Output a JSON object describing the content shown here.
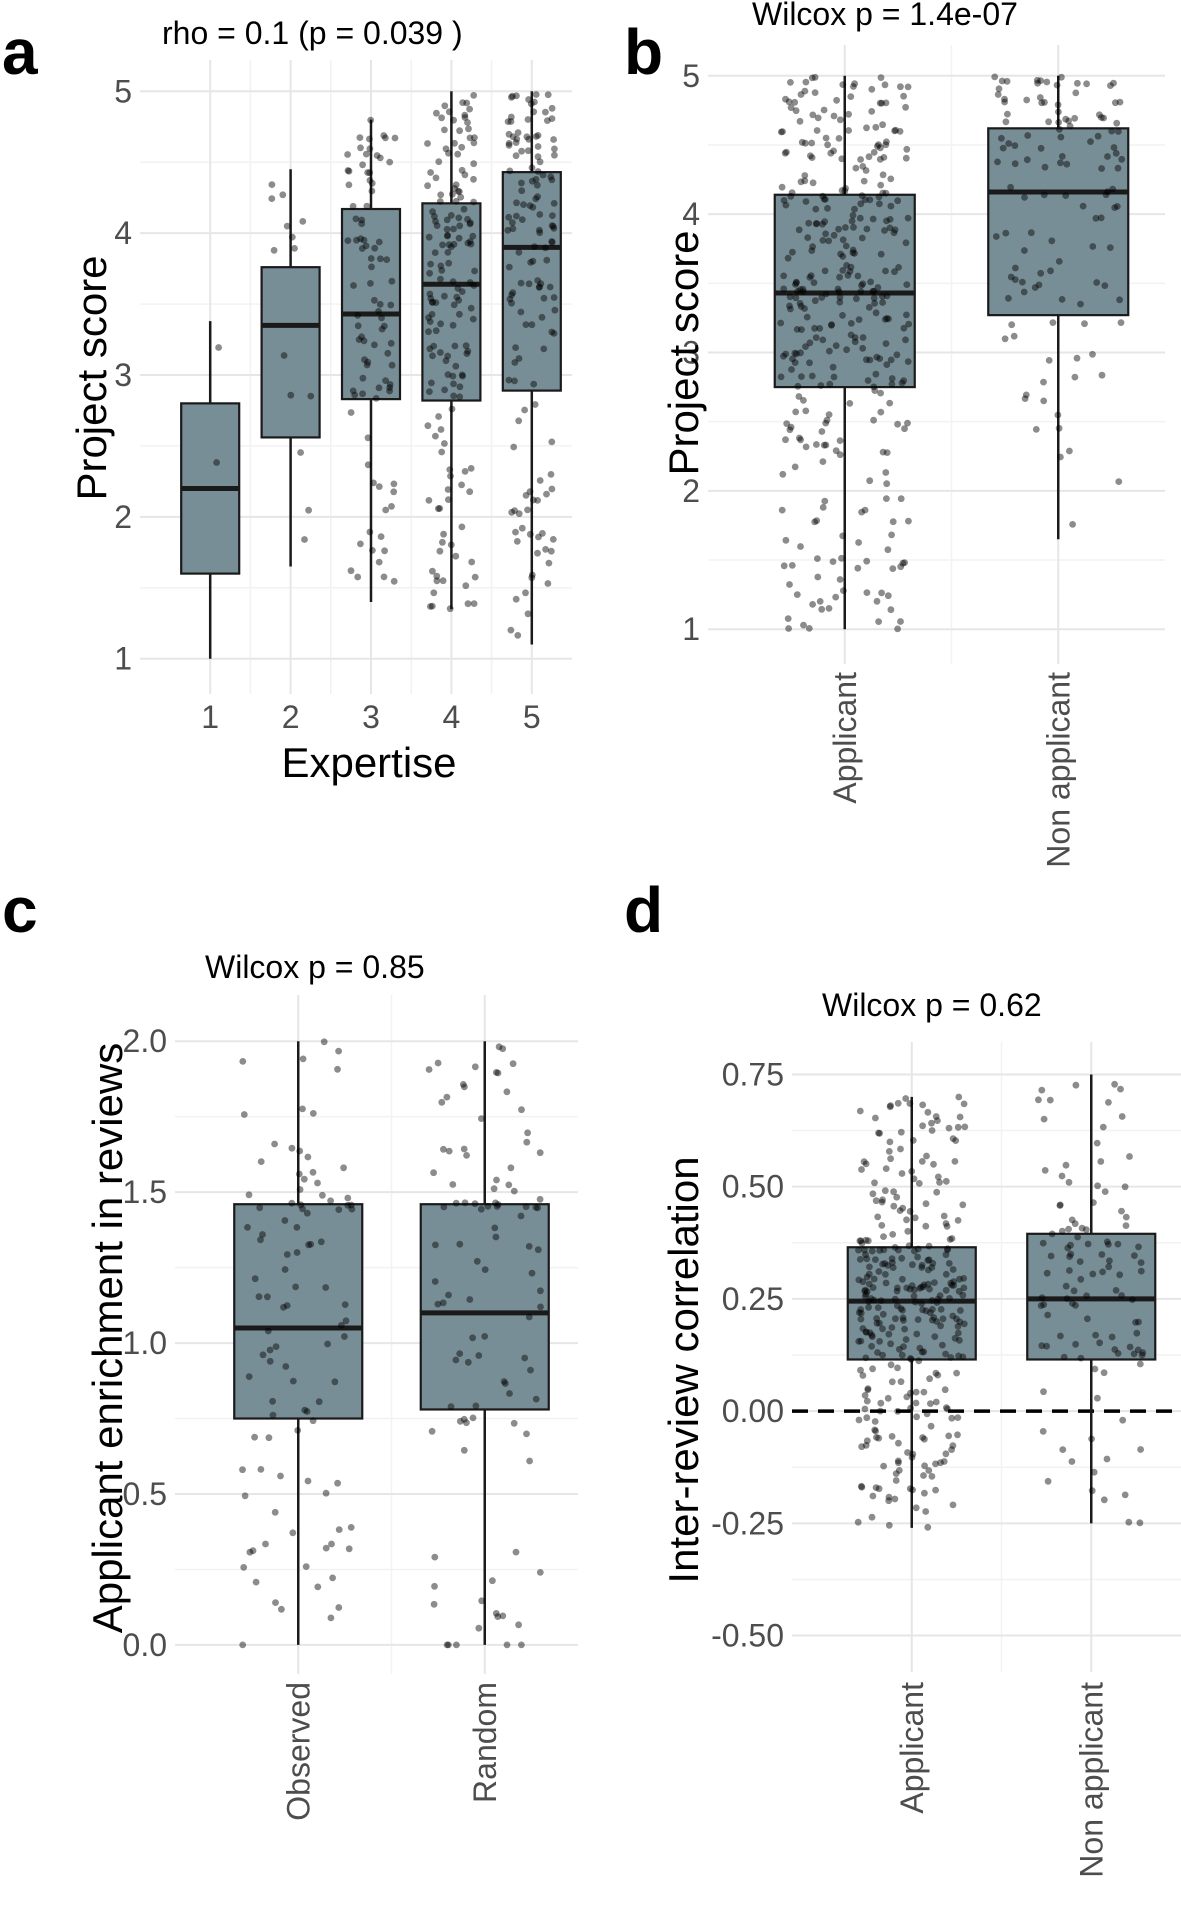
{
  "panels": [
    {
      "letter": "a",
      "subtitle": "rho = 0.1 (p = 0.039 )"
    },
    {
      "letter": "b",
      "subtitle": "Wilcox p = 1.4e-07"
    },
    {
      "letter": "c",
      "subtitle": "Wilcox p = 0.85"
    },
    {
      "letter": "d",
      "subtitle": "Wilcox p = 0.62"
    }
  ],
  "colors": {
    "box_fill": "#788e96",
    "box_outline": "#1a1a1a",
    "points": "#000000",
    "grid": "#e6e6e6"
  },
  "chart_data": [
    {
      "type": "box",
      "panel": "a",
      "title": "rho = 0.1 (p = 0.039 )",
      "xlabel": "Expertise",
      "ylabel": "Project score",
      "categories": [
        "1",
        "2",
        "3",
        "4",
        "5"
      ],
      "ylim": [
        0.85,
        5.15
      ],
      "yticks": [
        1,
        2,
        3,
        4,
        5
      ],
      "x_label_rotation": 0,
      "grid": true,
      "boxes": [
        {
          "category": "1",
          "min": 1.0,
          "q1": 1.6,
          "median": 2.2,
          "q3": 2.8,
          "max": 3.38
        },
        {
          "category": "2",
          "min": 1.65,
          "q1": 2.56,
          "median": 3.35,
          "q3": 3.76,
          "max": 4.45
        },
        {
          "category": "3",
          "min": 1.4,
          "q1": 2.83,
          "median": 3.43,
          "q3": 4.17,
          "max": 4.8
        },
        {
          "category": "4",
          "min": 1.35,
          "q1": 2.82,
          "median": 3.64,
          "q3": 4.21,
          "max": 5.0
        },
        {
          "category": "5",
          "min": 1.1,
          "q1": 2.89,
          "median": 3.9,
          "q3": 4.43,
          "max": 5.0
        }
      ],
      "jitter_points": {
        "counts": [
          2,
          14,
          90,
          160,
          140
        ]
      }
    },
    {
      "type": "box",
      "panel": "b",
      "title": "Wilcox p = 1.4e-07",
      "xlabel": "",
      "ylabel": "Project score",
      "categories": [
        "Applicant",
        "Non applicant"
      ],
      "ylim": [
        0.85,
        5.15
      ],
      "yticks": [
        1,
        2,
        3,
        4,
        5
      ],
      "x_label_rotation": -90,
      "grid": true,
      "boxes": [
        {
          "category": "Applicant",
          "min": 1.0,
          "q1": 2.75,
          "median": 3.43,
          "q3": 4.14,
          "max": 5.0
        },
        {
          "category": "Non applicant",
          "min": 1.65,
          "q1": 3.27,
          "median": 4.16,
          "q3": 4.62,
          "max": 5.0
        }
      ],
      "jitter_points": {
        "counts": [
          350,
          120
        ]
      }
    },
    {
      "type": "box",
      "panel": "c",
      "title": "Wilcox p = 0.85",
      "xlabel": "",
      "ylabel": "Applicant enrichment in reviews",
      "categories": [
        "Observed",
        "Random"
      ],
      "ylim": [
        -0.05,
        2.12
      ],
      "yticks": [
        0.0,
        0.5,
        1.0,
        1.5,
        2.0
      ],
      "ytick_labels": [
        "0.0",
        "0.5",
        "1.0",
        "1.5",
        "2.0"
      ],
      "x_label_rotation": -90,
      "grid": true,
      "boxes": [
        {
          "category": "Observed",
          "min": 0.0,
          "q1": 0.75,
          "median": 1.05,
          "q3": 1.46,
          "max": 2.0
        },
        {
          "category": "Random",
          "min": 0.0,
          "q1": 0.78,
          "median": 1.1,
          "q3": 1.46,
          "max": 2.0
        }
      ],
      "jitter_points": {
        "counts": [
          100,
          100
        ]
      }
    },
    {
      "type": "box",
      "panel": "d",
      "title": "Wilcox p = 0.62",
      "xlabel": "",
      "ylabel": "Inter-review correlation",
      "categories": [
        "Applicant",
        "Non applicant"
      ],
      "ylim": [
        -0.55,
        0.8
      ],
      "yticks": [
        -0.5,
        -0.25,
        0.0,
        0.25,
        0.5,
        0.75
      ],
      "ytick_labels": [
        "-0.50",
        "-0.25",
        "0.00",
        "0.25",
        "0.50",
        "0.75"
      ],
      "x_label_rotation": -90,
      "grid": true,
      "reference_line": {
        "y": 0.0,
        "style": "dashed"
      },
      "boxes": [
        {
          "category": "Applicant",
          "min": -0.26,
          "q1": 0.115,
          "median": 0.245,
          "q3": 0.365,
          "max": 0.7
        },
        {
          "category": "Non applicant",
          "min": -0.25,
          "q1": 0.115,
          "median": 0.25,
          "q3": 0.395,
          "max": 0.75
        }
      ],
      "jitter_points": {
        "counts": [
          330,
          110
        ]
      }
    }
  ]
}
